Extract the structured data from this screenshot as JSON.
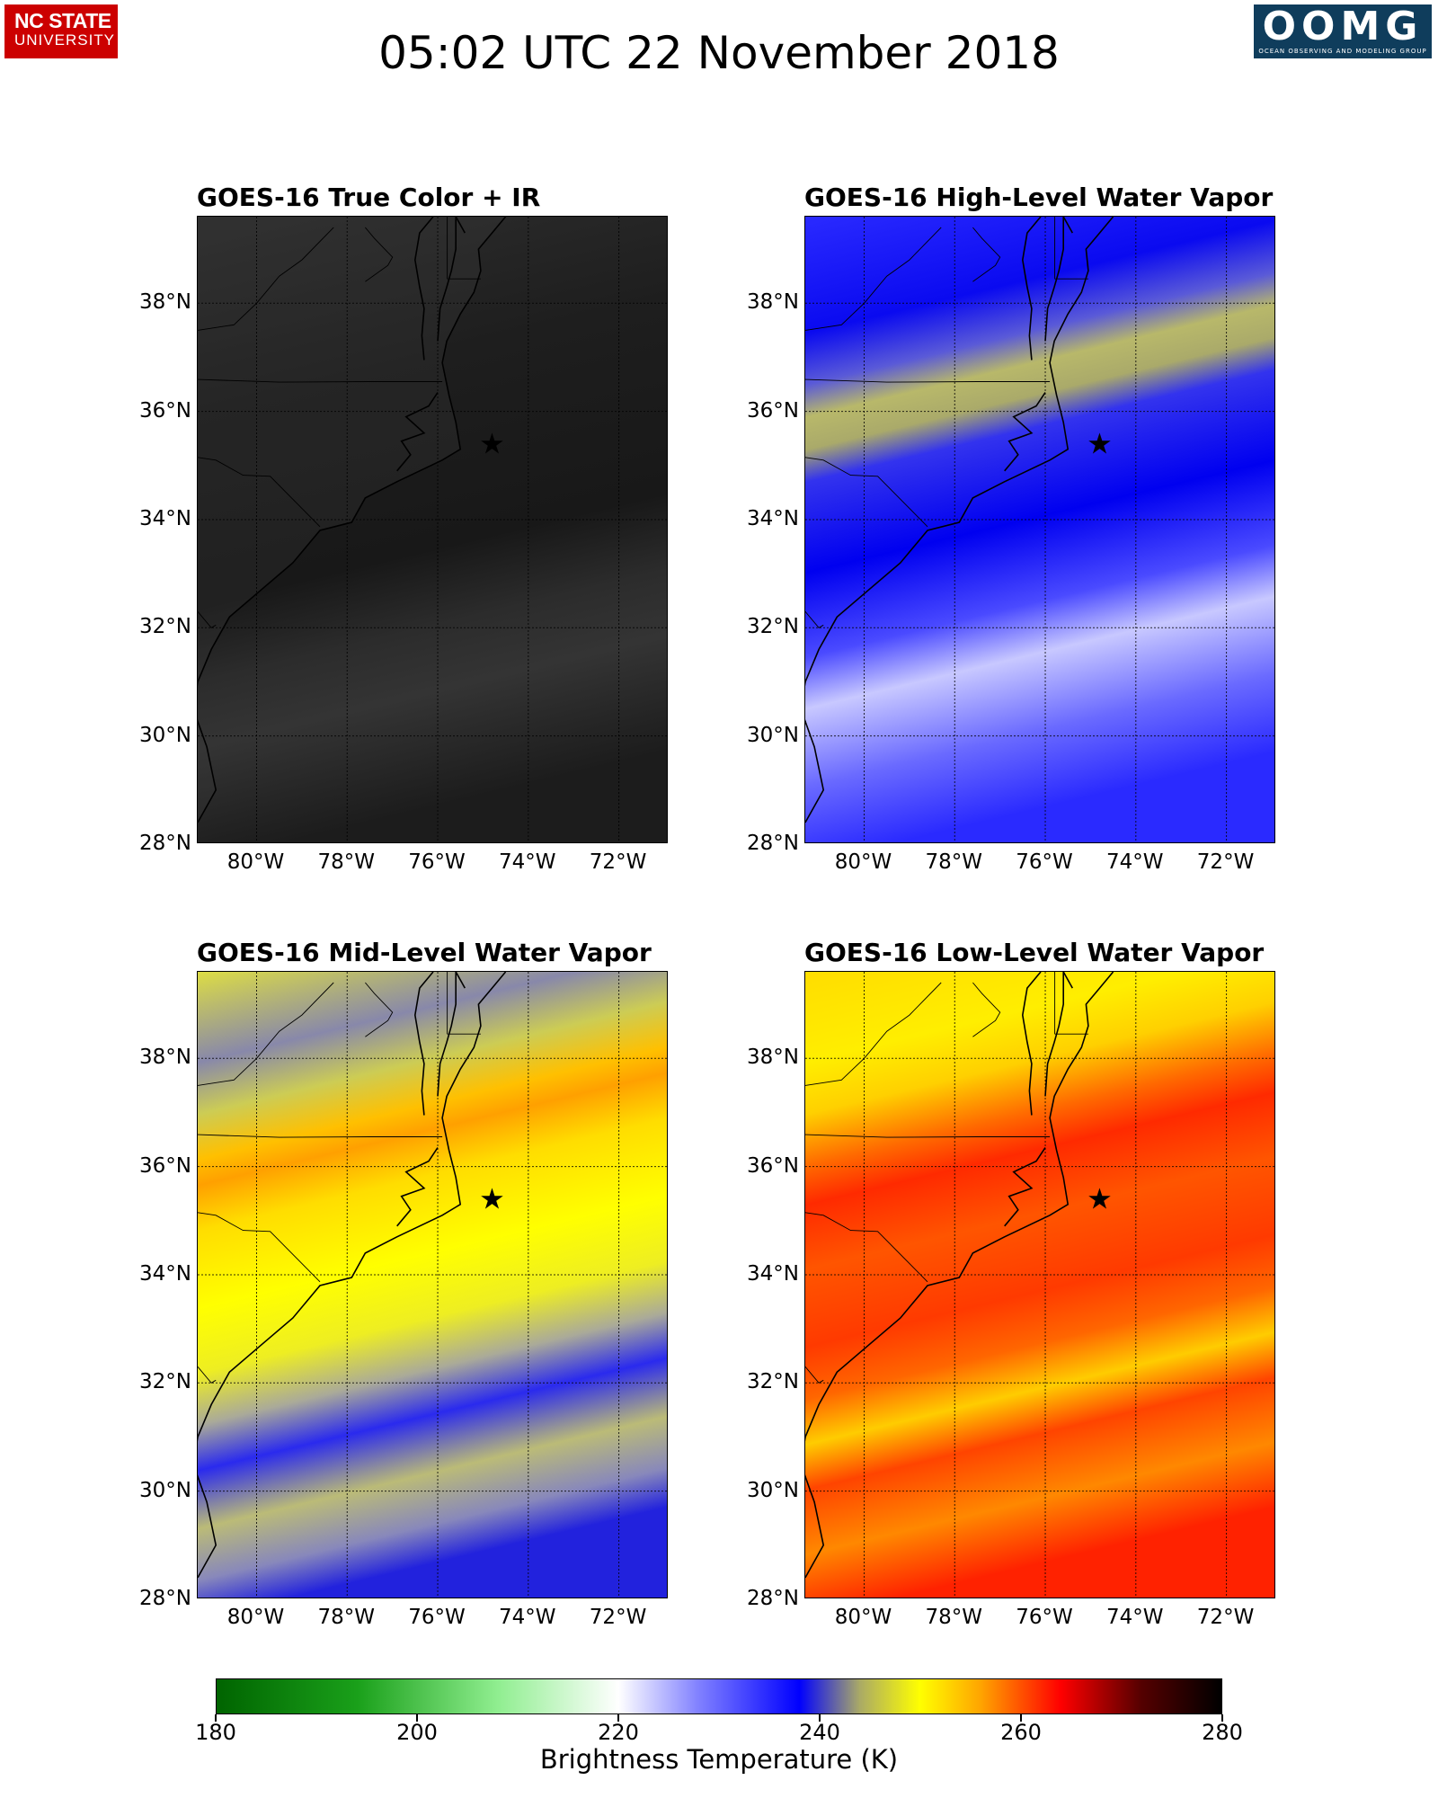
{
  "header": {
    "title": "05:02 UTC 22 November 2018",
    "logo_left": {
      "line1": "NC STATE",
      "line2": "UNIVERSITY"
    },
    "logo_right": {
      "main": "OOMG",
      "sub": "OCEAN OBSERVING AND MODELING GROUP"
    }
  },
  "panels": [
    {
      "title": "GOES-16 True Color + IR",
      "product": "true-color-ir"
    },
    {
      "title": "GOES-16 High-Level Water Vapor",
      "product": "high-level-wv"
    },
    {
      "title": "GOES-16 Mid-Level Water Vapor",
      "product": "mid-level-wv"
    },
    {
      "title": "GOES-16 Low-Level Water Vapor",
      "product": "low-level-wv"
    }
  ],
  "axes": {
    "lat_labels": [
      "38°N",
      "36°N",
      "34°N",
      "32°N",
      "30°N",
      "28°N"
    ],
    "lon_labels": [
      "80°W",
      "78°W",
      "76°W",
      "74°W",
      "72°W"
    ],
    "lat_range": [
      28,
      39.6
    ],
    "lon_range": [
      -81.3,
      -70.9
    ]
  },
  "marker": {
    "symbol": "★",
    "lat": 35.4,
    "lon": -74.8
  },
  "colorbar": {
    "title": "Brightness Temperature (K)",
    "ticks": [
      "180",
      "200",
      "220",
      "240",
      "260",
      "280"
    ],
    "range": [
      180,
      280
    ],
    "colors": {
      "green_dark": "#006400",
      "green_light": "#90ee90",
      "white": "#ffffff",
      "blue": "#0000ff",
      "olive": "#aaaa66",
      "yellow": "#ffff00",
      "orange": "#ffa500",
      "red": "#ff0000",
      "dark_red": "#550000",
      "black": "#000000"
    }
  }
}
